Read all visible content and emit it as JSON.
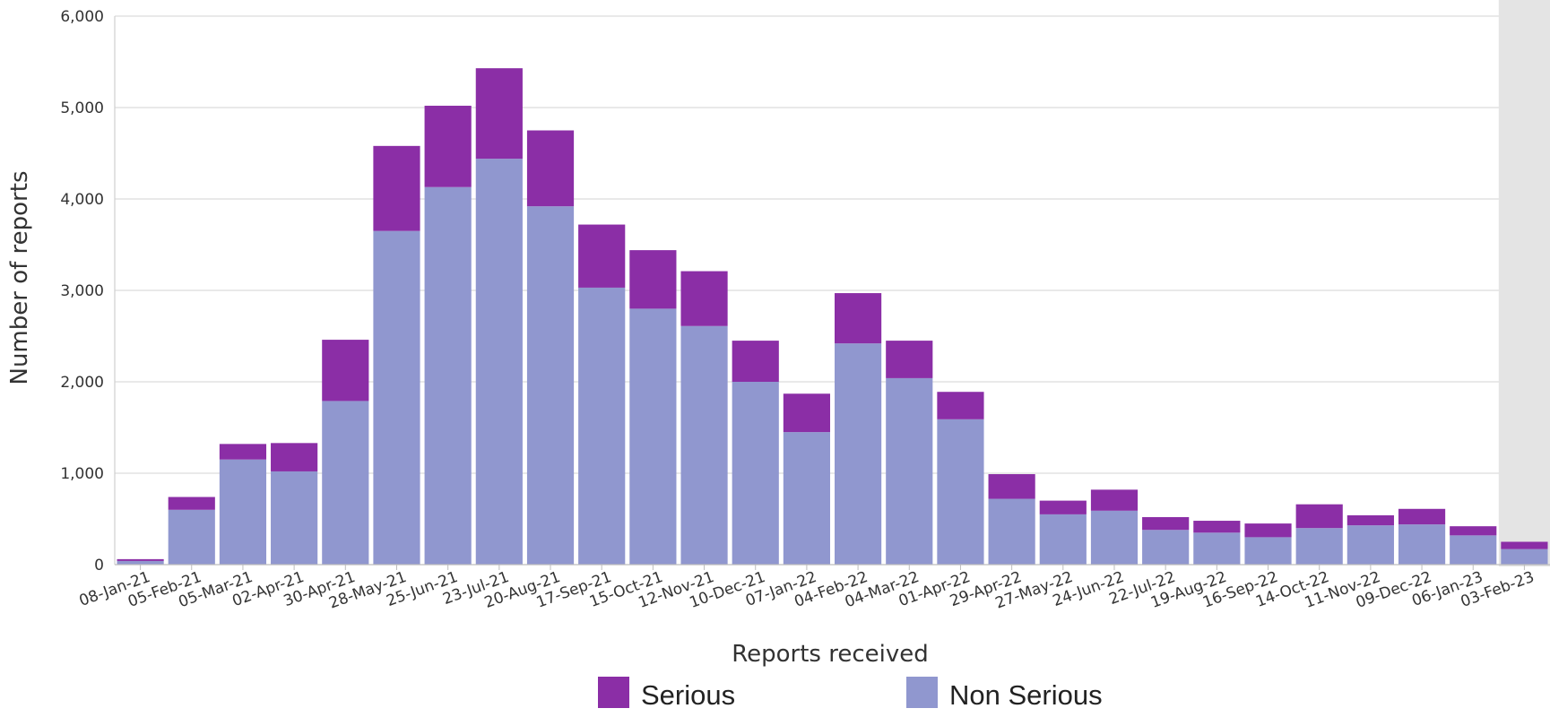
{
  "chart_data": {
    "type": "bar",
    "stacked": true,
    "xlabel": "Reports received",
    "ylabel": "Number of reports",
    "ylim": [
      0,
      6000
    ],
    "yticks": [
      0,
      1000,
      2000,
      3000,
      4000,
      5000,
      6000
    ],
    "ytick_labels": [
      "0",
      "1,000",
      "2,000",
      "3,000",
      "4,000",
      "5,000",
      "6,000"
    ],
    "grid": "horizontal",
    "legend_position": "bottom",
    "highlight_last_category": true,
    "categories": [
      "08-Jan-21",
      "05-Feb-21",
      "05-Mar-21",
      "02-Apr-21",
      "30-Apr-21",
      "28-May-21",
      "25-Jun-21",
      "23-Jul-21",
      "20-Aug-21",
      "17-Sep-21",
      "15-Oct-21",
      "12-Nov-21",
      "10-Dec-21",
      "07-Jan-22",
      "04-Feb-22",
      "04-Mar-22",
      "01-Apr-22",
      "29-Apr-22",
      "27-May-22",
      "24-Jun-22",
      "22-Jul-22",
      "19-Aug-22",
      "16-Sep-22",
      "14-Oct-22",
      "11-Nov-22",
      "09-Dec-22",
      "06-Jan-23",
      "03-Feb-23"
    ],
    "series": [
      {
        "name": "Non Serious",
        "color": "#9097cf",
        "values": [
          40,
          600,
          1150,
          1020,
          1790,
          3650,
          4130,
          4440,
          3920,
          3030,
          2800,
          2610,
          2000,
          1450,
          2420,
          2040,
          1590,
          720,
          550,
          590,
          380,
          350,
          300,
          400,
          430,
          440,
          320,
          170
        ]
      },
      {
        "name": "Serious",
        "color": "#8b2ea6",
        "values": [
          20,
          140,
          170,
          310,
          670,
          930,
          890,
          990,
          830,
          690,
          640,
          600,
          450,
          420,
          550,
          410,
          300,
          270,
          150,
          230,
          140,
          130,
          150,
          260,
          110,
          170,
          100,
          80
        ]
      }
    ]
  },
  "legend": {
    "items": [
      {
        "label": "Serious",
        "color": "#8b2ea6"
      },
      {
        "label": "Non Serious",
        "color": "#9097cf"
      }
    ]
  }
}
